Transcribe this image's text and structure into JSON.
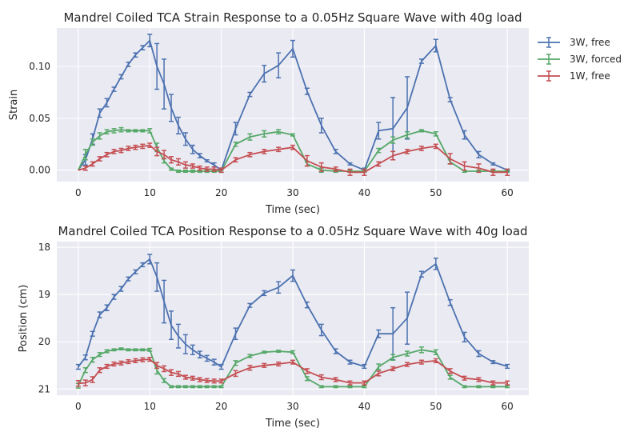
{
  "chart_data": [
    {
      "type": "line",
      "title": "Mandrel Coiled TCA Strain Response to a 0.05Hz Square Wave with 40g load",
      "xlabel": "Time (sec)",
      "ylabel": "Strain",
      "xlim": [
        -3,
        63
      ],
      "ylim": [
        -0.011,
        0.137
      ],
      "xticks": [
        0,
        10,
        20,
        30,
        40,
        50,
        60
      ],
      "xtick_labels": [
        "0",
        "10",
        "20",
        "30",
        "40",
        "50",
        "60"
      ],
      "yticks": [
        0.0,
        0.05,
        0.1
      ],
      "ytick_labels": [
        "0.00",
        "0.05",
        "0.10"
      ],
      "grid": true,
      "legend": "outside-right",
      "series": [
        {
          "name": "3W, free",
          "color": "#4c72b0",
          "x": [
            0,
            1,
            2,
            3,
            4,
            5,
            6,
            7,
            8,
            9,
            10,
            11,
            12,
            13,
            14,
            15,
            16,
            17,
            18,
            19,
            20,
            22,
            24,
            26,
            28,
            30,
            32,
            34,
            36,
            38,
            40,
            42,
            44,
            46,
            48,
            50,
            52,
            54,
            56,
            58,
            60
          ],
          "y": [
            0,
            0.01,
            0.03,
            0.055,
            0.065,
            0.078,
            0.09,
            0.102,
            0.111,
            0.118,
            0.125,
            0.1,
            0.083,
            0.06,
            0.043,
            0.03,
            0.02,
            0.014,
            0.009,
            0.005,
            0,
            0.04,
            0.073,
            0.093,
            0.101,
            0.117,
            0.076,
            0.043,
            0.018,
            0.006,
            0,
            0.038,
            0.04,
            0.06,
            0.105,
            0.12,
            0.068,
            0.034,
            0.015,
            0.006,
            0
          ],
          "err": [
            0,
            0.005,
            0.005,
            0.004,
            0.004,
            0.002,
            0.002,
            0.002,
            0.002,
            0.002,
            0.006,
            0.022,
            0.024,
            0.013,
            0.008,
            0.006,
            0.004,
            0.002,
            0.001,
            0.002,
            0.002,
            0.006,
            0.002,
            0.008,
            0.012,
            0.008,
            0.003,
            0.007,
            0.002,
            0.001,
            0.002,
            0.008,
            0.03,
            0.03,
            0.002,
            0.006,
            0.002,
            0.004,
            0.003,
            0.001,
            0.001
          ]
        },
        {
          "name": "3W, forced",
          "color": "#55a868",
          "x": [
            0,
            1,
            2,
            3,
            4,
            5,
            6,
            7,
            8,
            9,
            10,
            11,
            12,
            13,
            14,
            15,
            16,
            17,
            18,
            19,
            20,
            22,
            24,
            26,
            28,
            30,
            32,
            34,
            36,
            38,
            40,
            42,
            44,
            46,
            48,
            50,
            52,
            54,
            56,
            58,
            60
          ],
          "y": [
            0,
            0.015,
            0.027,
            0.033,
            0.037,
            0.038,
            0.039,
            0.038,
            0.038,
            0.038,
            0.038,
            0.022,
            0.009,
            0.001,
            -0.001,
            -0.001,
            -0.001,
            -0.001,
            -0.001,
            -0.001,
            -0.001,
            0.025,
            0.032,
            0.035,
            0.037,
            0.034,
            0.006,
            0,
            -0.001,
            -0.001,
            -0.001,
            0.019,
            0.029,
            0.034,
            0.038,
            0.035,
            0.008,
            -0.001,
            -0.001,
            -0.001,
            -0.001
          ],
          "err": [
            0,
            0.005,
            0.003,
            0.003,
            0.002,
            0.002,
            0.002,
            0.001,
            0.001,
            0.001,
            0.002,
            0.004,
            0.002,
            0.001,
            0.001,
            0.001,
            0.001,
            0.001,
            0.001,
            0.001,
            0.001,
            0.002,
            0.003,
            0.003,
            0.002,
            0.001,
            0.002,
            0.002,
            0.001,
            0.001,
            0.001,
            0.002,
            0.003,
            0.003,
            0.001,
            0.002,
            0.002,
            0.001,
            0.001,
            0.001,
            0.001
          ]
        },
        {
          "name": "1W, free",
          "color": "#c44e52",
          "x": [
            0,
            1,
            2,
            3,
            4,
            5,
            6,
            7,
            8,
            9,
            10,
            11,
            12,
            13,
            14,
            15,
            16,
            17,
            18,
            19,
            20,
            22,
            24,
            26,
            28,
            30,
            32,
            34,
            36,
            38,
            40,
            42,
            44,
            46,
            48,
            50,
            52,
            54,
            56,
            58,
            60
          ],
          "y": [
            0,
            0.002,
            0.006,
            0.011,
            0.015,
            0.018,
            0.019,
            0.021,
            0.022,
            0.023,
            0.024,
            0.018,
            0.015,
            0.01,
            0.008,
            0.005,
            0.004,
            0.002,
            0.001,
            0.001,
            0,
            0.01,
            0.015,
            0.018,
            0.02,
            0.022,
            0.009,
            0.003,
            0.001,
            -0.002,
            -0.002,
            0.006,
            0.014,
            0.018,
            0.021,
            0.023,
            0.011,
            0.004,
            0.002,
            -0.002,
            -0.002
          ],
          "err": [
            0,
            0.002,
            0.002,
            0.002,
            0.002,
            0.002,
            0.002,
            0.002,
            0.002,
            0.002,
            0.002,
            0.004,
            0.004,
            0.003,
            0.003,
            0.003,
            0.002,
            0.002,
            0.002,
            0.002,
            0.002,
            0.002,
            0.002,
            0.002,
            0.002,
            0.002,
            0.005,
            0.004,
            0.002,
            0.003,
            0.003,
            0.002,
            0.004,
            0.002,
            0.002,
            0.002,
            0.005,
            0.004,
            0.004,
            0.003,
            0.003
          ]
        }
      ]
    },
    {
      "type": "line",
      "title": "Mandrel Coiled TCA Position Response to a 0.05Hz Square Wave with 40g load",
      "xlabel": "Time (sec)",
      "ylabel": "Position (cm)",
      "xlim": [
        -3,
        63
      ],
      "ylim": [
        21.13,
        17.88
      ],
      "y_inverted": true,
      "xticks": [
        0,
        10,
        20,
        30,
        40,
        50,
        60
      ],
      "xtick_labels": [
        "0",
        "10",
        "20",
        "30",
        "40",
        "50",
        "60"
      ],
      "yticks": [
        18,
        19,
        20,
        21
      ],
      "ytick_labels": [
        "18",
        "19",
        "20",
        "21"
      ],
      "grid": true,
      "series": [
        {
          "name": "3W, free",
          "color": "#4c72b0",
          "x": [
            0,
            1,
            2,
            3,
            4,
            5,
            6,
            7,
            8,
            9,
            10,
            11,
            12,
            13,
            14,
            15,
            16,
            17,
            18,
            19,
            20,
            22,
            24,
            26,
            28,
            30,
            32,
            34,
            36,
            38,
            40,
            42,
            44,
            46,
            48,
            50,
            52,
            54,
            56,
            58,
            60
          ],
          "y": [
            20.53,
            20.33,
            19.83,
            19.43,
            19.28,
            19.05,
            18.88,
            18.67,
            18.52,
            18.37,
            18.25,
            18.63,
            19.15,
            19.65,
            19.88,
            20.05,
            20.17,
            20.27,
            20.35,
            20.43,
            20.53,
            19.83,
            19.23,
            18.97,
            18.85,
            18.6,
            19.22,
            19.75,
            20.2,
            20.43,
            20.52,
            19.83,
            19.83,
            19.5,
            18.57,
            18.35,
            19.17,
            19.9,
            20.25,
            20.43,
            20.52
          ],
          "err": [
            0.05,
            0.05,
            0.05,
            0.06,
            0.06,
            0.05,
            0.05,
            0.04,
            0.04,
            0.04,
            0.1,
            0.3,
            0.45,
            0.3,
            0.25,
            0.2,
            0.1,
            0.07,
            0.06,
            0.06,
            0.05,
            0.12,
            0.04,
            0.05,
            0.12,
            0.12,
            0.06,
            0.12,
            0.05,
            0.04,
            0.04,
            0.08,
            0.55,
            0.55,
            0.06,
            0.12,
            0.06,
            0.1,
            0.06,
            0.03,
            0.04
          ]
        },
        {
          "name": "3W, forced",
          "color": "#55a868",
          "x": [
            0,
            1,
            2,
            3,
            4,
            5,
            6,
            7,
            8,
            9,
            10,
            11,
            12,
            13,
            14,
            15,
            16,
            17,
            18,
            19,
            20,
            22,
            24,
            26,
            28,
            30,
            32,
            34,
            36,
            38,
            40,
            42,
            44,
            46,
            48,
            50,
            52,
            54,
            56,
            58,
            60
          ],
          "y": [
            20.93,
            20.6,
            20.38,
            20.27,
            20.2,
            20.17,
            20.15,
            20.17,
            20.17,
            20.17,
            20.17,
            20.6,
            20.82,
            20.95,
            20.95,
            20.95,
            20.95,
            20.95,
            20.95,
            20.95,
            20.95,
            20.45,
            20.3,
            20.22,
            20.2,
            20.22,
            20.78,
            20.95,
            20.95,
            20.95,
            20.95,
            20.53,
            20.33,
            20.25,
            20.17,
            20.22,
            20.75,
            20.95,
            20.95,
            20.95,
            20.95
          ],
          "err": [
            0.05,
            0.05,
            0.05,
            0.04,
            0.03,
            0.02,
            0.02,
            0.02,
            0.02,
            0.02,
            0.03,
            0.08,
            0.04,
            0.02,
            0.02,
            0.02,
            0.02,
            0.02,
            0.02,
            0.02,
            0.02,
            0.05,
            0.03,
            0.02,
            0.02,
            0.03,
            0.04,
            0.02,
            0.02,
            0.02,
            0.02,
            0.06,
            0.06,
            0.05,
            0.06,
            0.05,
            0.04,
            0.02,
            0.02,
            0.02,
            0.02
          ]
        },
        {
          "name": "1W, free",
          "color": "#c44e52",
          "x": [
            0,
            1,
            2,
            3,
            4,
            5,
            6,
            7,
            8,
            9,
            10,
            11,
            12,
            13,
            14,
            15,
            16,
            17,
            18,
            19,
            20,
            22,
            24,
            26,
            28,
            30,
            32,
            34,
            36,
            38,
            40,
            42,
            44,
            46,
            48,
            50,
            52,
            54,
            56,
            58,
            60
          ],
          "y": [
            20.88,
            20.87,
            20.8,
            20.6,
            20.52,
            20.47,
            20.45,
            20.42,
            20.4,
            20.38,
            20.37,
            20.5,
            20.57,
            20.65,
            20.68,
            20.75,
            20.77,
            20.8,
            20.82,
            20.83,
            20.83,
            20.67,
            20.55,
            20.5,
            20.47,
            20.43,
            20.62,
            20.75,
            20.8,
            20.87,
            20.87,
            20.67,
            20.57,
            20.48,
            20.43,
            20.4,
            20.62,
            20.77,
            20.8,
            20.87,
            20.87
          ],
          "err": [
            0.06,
            0.06,
            0.06,
            0.05,
            0.04,
            0.04,
            0.04,
            0.04,
            0.04,
            0.04,
            0.04,
            0.06,
            0.06,
            0.06,
            0.05,
            0.04,
            0.04,
            0.04,
            0.04,
            0.04,
            0.04,
            0.06,
            0.05,
            0.04,
            0.04,
            0.04,
            0.05,
            0.05,
            0.04,
            0.04,
            0.04,
            0.05,
            0.04,
            0.04,
            0.04,
            0.04,
            0.05,
            0.04,
            0.04,
            0.04,
            0.04
          ]
        }
      ]
    }
  ]
}
